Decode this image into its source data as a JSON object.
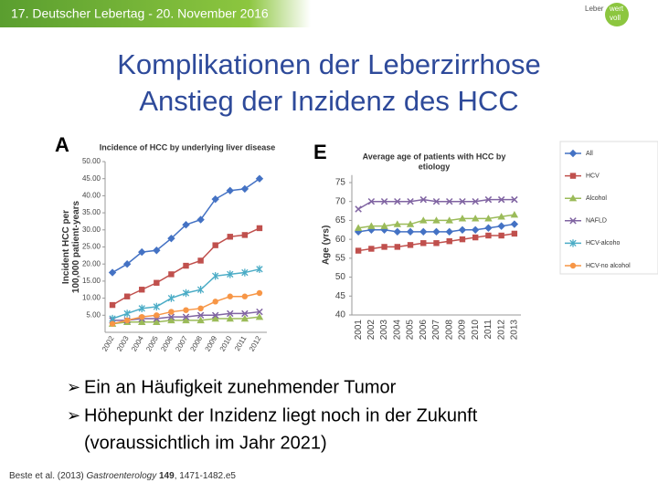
{
  "header": "17. Deutscher Lebertag - 20. November 2016",
  "logo": [
    "Leber",
    "wert",
    "voll"
  ],
  "title": [
    "Komplikationen der Leberzirrhose",
    "Anstieg der Inzidenz des HCC"
  ],
  "panels": [
    "A",
    "E"
  ],
  "bullets": [
    "Ein an Häufigkeit zunehmender Tumor",
    "Höhepunkt der Inzidenz liegt noch in der Zukunft",
    "(voraussichtlich im Jahr 2021)"
  ],
  "citation": {
    "authors": "Beste et al. (2013) ",
    "journal": "Gastroenterology",
    "volume": " 149",
    "pages": ", 1471-1482.e5"
  },
  "chart_data": [
    {
      "type": "line",
      "title": "Incidence of HCC by underlying liver disease",
      "ylabel": [
        "Incident HCC per",
        "100,000 patient-years"
      ],
      "categories": [
        "2002",
        "2003",
        "2004",
        "2005",
        "2006",
        "2007",
        "2008",
        "2009",
        "2010",
        "2011",
        "2012"
      ],
      "ylim": [
        0,
        50
      ],
      "yticks": [
        {
          "value": 5,
          "label": "5.00"
        },
        {
          "value": 10,
          "label": "10.00"
        },
        {
          "value": 15,
          "label": "15.00"
        },
        {
          "value": 20,
          "label": "20.00"
        },
        {
          "value": 25,
          "label": "25.00"
        },
        {
          "value": 30,
          "label": "30.00"
        },
        {
          "value": 35,
          "label": "35.00"
        },
        {
          "value": 40,
          "label": "40.00"
        },
        {
          "value": 45,
          "label": "45.00"
        },
        {
          "value": 50,
          "label": "50.00"
        }
      ],
      "series": [
        {
          "name": "All",
          "color": "#4472c4",
          "marker": "diamond",
          "values": [
            17.5,
            20,
            23.5,
            24,
            27.5,
            31.5,
            33,
            39,
            41.5,
            42,
            45
          ]
        },
        {
          "name": "HCV",
          "color": "#c0504d",
          "marker": "square",
          "values": [
            8,
            10.5,
            12.5,
            14.5,
            17,
            19.5,
            21,
            25.5,
            28,
            28.5,
            30.5
          ]
        },
        {
          "name": "Alcohol",
          "color": "#9bbb59",
          "marker": "triangle",
          "values": [
            2.5,
            3,
            3,
            3,
            3.5,
            3.5,
            3.5,
            4,
            4,
            4,
            4.5
          ]
        },
        {
          "name": "NAFLD",
          "color": "#8064a2",
          "marker": "x",
          "values": [
            3.5,
            3.5,
            4,
            4,
            4.5,
            4.5,
            5,
            5,
            5.5,
            5.5,
            6
          ]
        },
        {
          "name": "HCV-alcoho",
          "color": "#4bacc6",
          "marker": "star",
          "values": [
            4,
            5.5,
            7,
            7.5,
            10,
            11.5,
            12.5,
            16.5,
            17,
            17.5,
            18.5
          ]
        },
        {
          "name": "HCV-no alcohol",
          "color": "#f79646",
          "marker": "circle",
          "values": [
            2.5,
            3.5,
            4.5,
            5,
            6,
            6.5,
            7,
            9,
            10.5,
            10.5,
            11.5
          ]
        }
      ]
    },
    {
      "type": "line",
      "title": [
        "Average age of patients with HCC by",
        "etiology"
      ],
      "ylabel": [
        "Age (yrs)"
      ],
      "categories": [
        "2001",
        "2002",
        "2003",
        "2004",
        "2005",
        "2006",
        "2007",
        "2008",
        "2009",
        "2010",
        "2011",
        "2012",
        "2013"
      ],
      "ylim": [
        40,
        77
      ],
      "yticks": [
        40,
        45,
        50,
        55,
        60,
        65,
        70,
        75
      ],
      "series": [
        {
          "color": "#4472c4",
          "marker": "diamond",
          "values": [
            62,
            62.5,
            62.5,
            62,
            62,
            62,
            62,
            62,
            62.5,
            62.5,
            63,
            63.5,
            64
          ]
        },
        {
          "color": "#c0504d",
          "marker": "square",
          "values": [
            57,
            57.5,
            58,
            58,
            58.5,
            59,
            59,
            59.5,
            60,
            60.5,
            61,
            61,
            61.5
          ]
        },
        {
          "color": "#9bbb59",
          "marker": "triangle",
          "values": [
            63,
            63.5,
            63.5,
            64,
            64,
            65,
            65,
            65,
            65.5,
            65.5,
            65.5,
            66,
            66.5
          ]
        },
        {
          "color": "#8064a2",
          "marker": "x",
          "values": [
            68,
            70,
            70,
            70,
            70,
            70.5,
            70,
            70,
            70,
            70,
            70.5,
            70.5,
            70.5
          ]
        }
      ]
    }
  ]
}
